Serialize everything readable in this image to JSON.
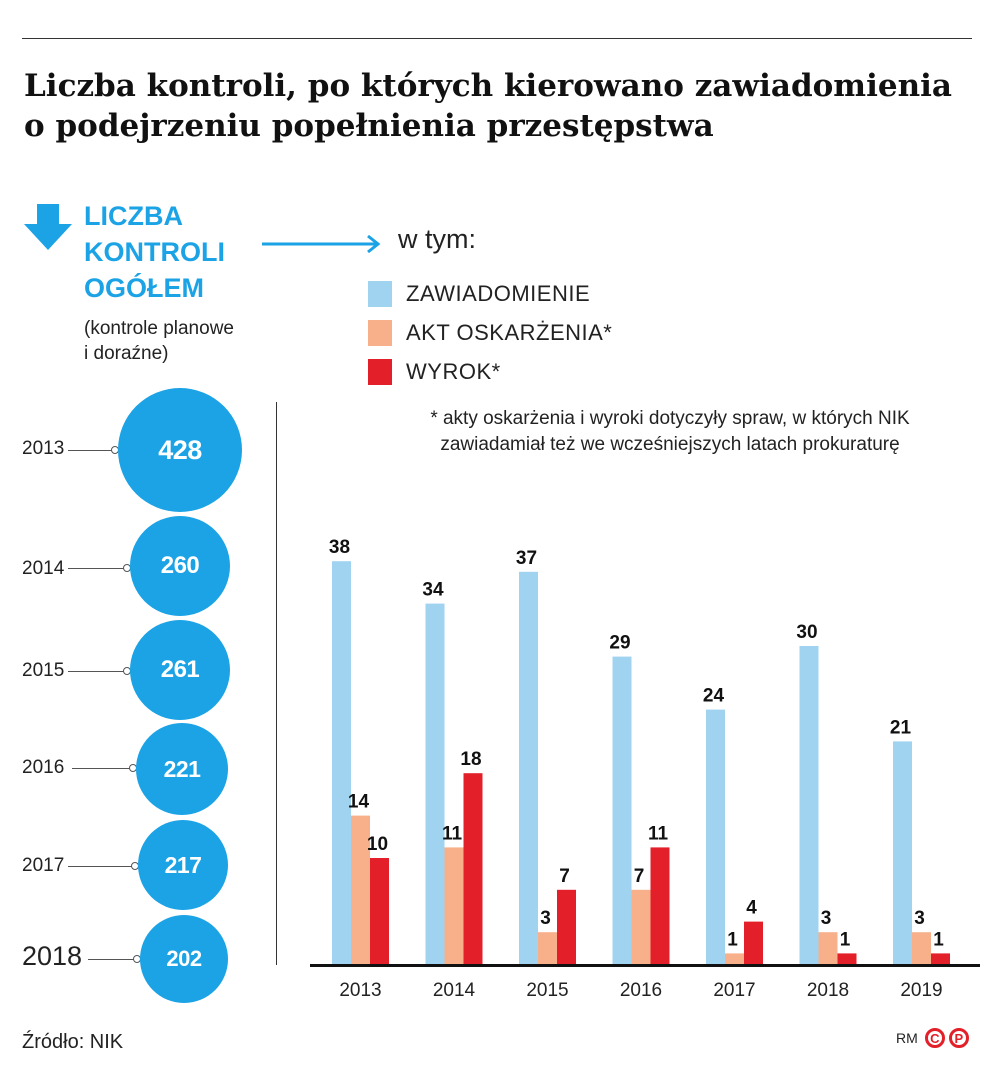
{
  "title": {
    "line1": "Liczba kontroli, po których kierowano zawiadomienia",
    "line2": "o podejrzeniu popełnienia przestępstwa"
  },
  "main_label": {
    "line1": "LICZBA",
    "line2": "KONTROLI",
    "line3": "OGÓŁEM"
  },
  "sub_label": {
    "line1": "(kontrole planowe",
    "line2": "i doraźne)"
  },
  "w_tym": "w tym:",
  "legend": [
    {
      "label": "ZAWIADOMIENIE",
      "color": "#9fd3f0"
    },
    {
      "label": "AKT OSKARŻENIA*",
      "color": "#f7b08a"
    },
    {
      "label": "WYROK*",
      "color": "#e3202a"
    }
  ],
  "footnote": {
    "line1": "* akty oskarżenia i wyroki dotyczyły spraw, w których NIK",
    "line2": "zawiadamiał też we wcześniejszych latach prokuraturę"
  },
  "colors": {
    "accent": "#1ba3e6",
    "zawiadomienie": "#9fd3f0",
    "akt": "#f7b08a",
    "wyrok": "#e3202a"
  },
  "bubbles": [
    {
      "year": "2013",
      "value": "428"
    },
    {
      "year": "2014",
      "value": "260"
    },
    {
      "year": "2015",
      "value": "261"
    },
    {
      "year": "2016",
      "value": "221"
    },
    {
      "year": "2017",
      "value": "217"
    },
    {
      "year": "2018",
      "value": "202"
    }
  ],
  "chart_data": {
    "type": "bar",
    "categories": [
      "2013",
      "2014",
      "2015",
      "2016",
      "2017",
      "2018",
      "2019"
    ],
    "series": [
      {
        "name": "ZAWIADOMIENIE",
        "values": [
          38,
          34,
          37,
          29,
          24,
          30,
          21
        ]
      },
      {
        "name": "AKT OSKARŻENIA*",
        "values": [
          14,
          11,
          3,
          7,
          1,
          3,
          3
        ]
      },
      {
        "name": "WYROK*",
        "values": [
          10,
          18,
          7,
          11,
          4,
          1,
          1
        ]
      }
    ],
    "ylim": [
      0,
      40
    ],
    "title": "",
    "xlabel": "",
    "ylabel": ""
  },
  "source": "Źródło: NIK",
  "credit": "RM",
  "credit_icons": [
    "C",
    "P"
  ]
}
